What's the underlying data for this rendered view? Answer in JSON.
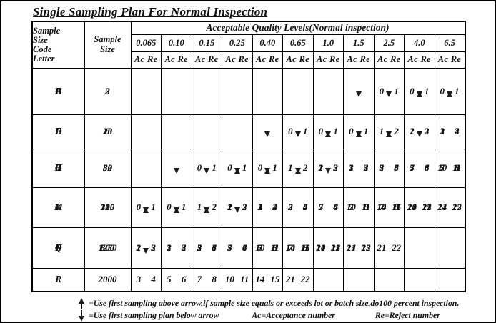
{
  "title": "Single Sampling Plan For Normal Inspection",
  "table": {
    "corner_header": "Sample\nSize\nCode\nLetter",
    "sample_size_header": "Sample\nSize",
    "aql_header": "Acceptable Quality Levels(Normal inspection)",
    "aql_levels": [
      "0.065",
      "0.10",
      "0.15",
      "0.25",
      "0.40",
      "0.65",
      "1.0",
      "1.5",
      "2.5",
      "4.0",
      "6.5"
    ],
    "ac_re_label": "Ac Re",
    "groups": [
      {
        "letters": [
          "A",
          "B",
          "C"
        ],
        "sizes": [
          "2",
          "3",
          "5"
        ],
        "cells": [
          [
            "|",
            "|",
            "|"
          ],
          [
            "|",
            "|",
            "|"
          ],
          [
            "|",
            "|",
            "|"
          ],
          [
            "|",
            "|",
            "|"
          ],
          [
            "|",
            "|",
            "|"
          ],
          [
            "|",
            "|",
            "|"
          ],
          [
            "|",
            "|",
            "|"
          ],
          [
            "|",
            "|",
            "D"
          ],
          [
            "|",
            "D",
            "0 1"
          ],
          [
            "D",
            "0 1",
            "U"
          ],
          [
            "0 1",
            "U",
            "V"
          ]
        ]
      },
      {
        "letters": [
          "D",
          "E",
          "F"
        ],
        "sizes": [
          "8",
          "13",
          "20"
        ],
        "cells": [
          [
            "|",
            "|",
            "|"
          ],
          [
            "|",
            "|",
            "|"
          ],
          [
            "|",
            "|",
            "|"
          ],
          [
            "|",
            "|",
            "|"
          ],
          [
            "|",
            "|",
            "D"
          ],
          [
            "|",
            "D",
            "0 1"
          ],
          [
            "D",
            "0 1",
            "U"
          ],
          [
            "0 1",
            "U",
            "V"
          ],
          [
            "U",
            "V",
            "1 2"
          ],
          [
            "V",
            "1 2",
            "2 3"
          ],
          [
            "1 2",
            "2 3",
            "3 4"
          ]
        ]
      },
      {
        "letters": [
          "G",
          "H",
          "J"
        ],
        "sizes": [
          "32",
          "50",
          "80"
        ],
        "cells": [
          [
            "|",
            "|",
            "|"
          ],
          [
            "|",
            "|",
            "D"
          ],
          [
            "|",
            "D",
            "0 1"
          ],
          [
            "D",
            "0 1",
            "U"
          ],
          [
            "0 1",
            "U",
            "V"
          ],
          [
            "U",
            "V",
            "1 2"
          ],
          [
            "V",
            "1 2",
            "2 3"
          ],
          [
            "1 2",
            "2 3",
            "3 4"
          ],
          [
            "2 3",
            "3 4",
            "5 6"
          ],
          [
            "3 4",
            "5 6",
            "7 8"
          ],
          [
            "5 6",
            "7 8",
            "10 11"
          ]
        ]
      },
      {
        "letters": [
          "K",
          "L",
          "M"
        ],
        "sizes": [
          "125",
          "200",
          "315"
        ],
        "cells": [
          [
            "D",
            "0 1",
            "U"
          ],
          [
            "0 1",
            "U",
            "V"
          ],
          [
            "U",
            "V",
            "1 2"
          ],
          [
            "V",
            "1 2",
            "2 3"
          ],
          [
            "1 2",
            "2 3",
            "3 4"
          ],
          [
            "2 3",
            "3 4",
            "5 6"
          ],
          [
            "3 4",
            "5 6",
            "7 8"
          ],
          [
            "5 6",
            "7 8",
            "10 11"
          ],
          [
            "7 8",
            "10 11",
            "14 15"
          ],
          [
            "10 11",
            "14 15",
            "21 22"
          ],
          [
            "14 15",
            "21 22",
            ""
          ]
        ]
      },
      {
        "letters": [
          "N",
          "P",
          "Q"
        ],
        "sizes": [
          "500",
          "800",
          "1250"
        ],
        "cells": [
          [
            "V",
            "1 2",
            "2 3"
          ],
          [
            "1 2",
            "2 3",
            "3 4"
          ],
          [
            "2 3",
            "3 4",
            "5 6"
          ],
          [
            "3 4",
            "5 6",
            "7 8"
          ],
          [
            "5 6",
            "7 8",
            "10 11"
          ],
          [
            "7 8",
            "10 11",
            "14 15"
          ],
          [
            "10 11",
            "14 15",
            "21 22"
          ],
          [
            "14 15",
            "21 22",
            ""
          ],
          [
            "21 22",
            "",
            ""
          ],
          [
            "",
            "",
            ""
          ],
          [
            "",
            "",
            ""
          ]
        ]
      },
      {
        "letters": [
          "R"
        ],
        "sizes": [
          "2000"
        ],
        "cells": [
          [
            "3 4"
          ],
          [
            "5 6"
          ],
          [
            "7 8"
          ],
          [
            "10 11"
          ],
          [
            "14 15"
          ],
          [
            "21 22"
          ],
          [
            ""
          ],
          [
            ""
          ],
          [
            ""
          ],
          [
            ""
          ],
          [
            ""
          ]
        ]
      }
    ]
  },
  "legend": {
    "up_line": "=Use first sampling above arrow,if sample size equals or exceeds lot or batch size,do100 percent inspection.",
    "down_line": "=Use first sampling plan below arrow",
    "ac_note": "Ac=Acceptance number",
    "re_note": "Re=Reject number"
  },
  "colors": {
    "ink": "#111111",
    "background": "#ffffff"
  }
}
